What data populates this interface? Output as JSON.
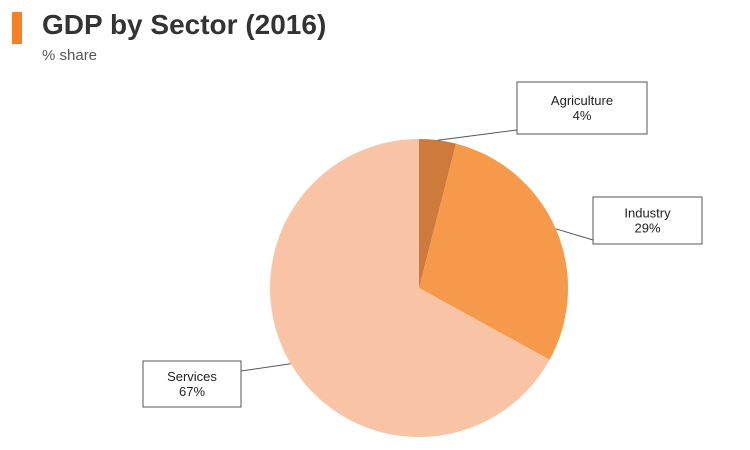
{
  "header": {
    "title": "GDP by Sector (2016)",
    "subtitle": "% share",
    "accent_color": "#f58025"
  },
  "chart_data": {
    "type": "pie",
    "title": "GDP by Sector (2016)",
    "subtitle": "% share",
    "start_angle_deg": 0,
    "direction": "clockwise",
    "slices": [
      {
        "label": "Agriculture",
        "value": 4,
        "value_label": "4%",
        "color": "#cd7a3a"
      },
      {
        "label": "Industry",
        "value": 29,
        "value_label": "29%",
        "color": "#f7994a"
      },
      {
        "label": "Services",
        "value": 67,
        "value_label": "67%",
        "color": "#f9c4a6"
      }
    ]
  }
}
